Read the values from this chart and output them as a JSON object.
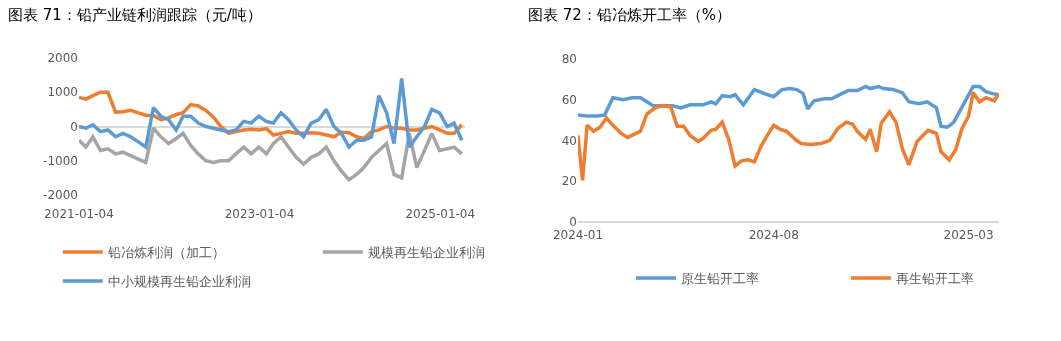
{
  "chart_data": [
    {
      "type": "line",
      "title": "图表 71：铅产业链利润跟踪（元/吨）",
      "legend": "bottom",
      "line_style": "solid",
      "marker": "none",
      "x": [
        "2021-01-04",
        "2021-02",
        "2021-03",
        "2021-04",
        "2021-05",
        "2021-06",
        "2021-07",
        "2021-08",
        "2021-09",
        "2021-10",
        "2021-11",
        "2021-12",
        "2022-01",
        "2022-02",
        "2022-03",
        "2022-04",
        "2022-05",
        "2022-06",
        "2022-07",
        "2022-08",
        "2022-09",
        "2022-10",
        "2022-11",
        "2022-12",
        "2023-01",
        "2023-02",
        "2023-03",
        "2023-04",
        "2023-05",
        "2023-06",
        "2023-07",
        "2023-08",
        "2023-09",
        "2023-10",
        "2023-11",
        "2023-12",
        "2024-01",
        "2024-02",
        "2024-03",
        "2024-04",
        "2024-05",
        "2024-06",
        "2024-07",
        "2024-08",
        "2024-09",
        "2024-10",
        "2024-11",
        "2024-12",
        "2025-01",
        "2025-02",
        "2025-03",
        "2025-04"
      ],
      "xlim": [
        "2021-01-04",
        "2025-04-15"
      ],
      "xticks": [
        {
          "value": "2021-01-04",
          "label": "2021-01-04"
        },
        {
          "value": "2023-01-04",
          "label": "2023-01-04"
        },
        {
          "value": "2025-01-04",
          "label": "2025-01-04"
        }
      ],
      "ylim": [
        -2000,
        2000
      ],
      "yticks": [
        -2000,
        -1000,
        0,
        1000,
        2000
      ],
      "series": [
        {
          "name": "铅冶炼利润（加工）",
          "color": "#ed7d31",
          "values": [
            850,
            800,
            900,
            1000,
            1000,
            420,
            430,
            470,
            400,
            330,
            320,
            200,
            250,
            350,
            400,
            640,
            600,
            470,
            280,
            0,
            -200,
            -150,
            -100,
            -80,
            -100,
            -60,
            -250,
            -200,
            -150,
            -200,
            -200,
            -180,
            -200,
            -250,
            -300,
            -170,
            -180,
            -300,
            -350,
            -150,
            -100,
            0,
            -50,
            -50,
            -100,
            -100,
            -50,
            0,
            -100,
            -200,
            -200,
            50
          ]
        },
        {
          "name": "规模再生铅企业利润",
          "color": "#a5a5a5",
          "values": [
            -400,
            -600,
            -300,
            -700,
            -650,
            -800,
            -750,
            -850,
            -950,
            -1050,
            -50,
            -300,
            -500,
            -350,
            -200,
            -550,
            -800,
            -1000,
            -1050,
            -1000,
            -1000,
            -800,
            -600,
            -800,
            -600,
            -800,
            -500,
            -300,
            -600,
            -900,
            -1100,
            -900,
            -800,
            -600,
            -1000,
            -1300,
            -1550,
            -1400,
            -1200,
            -900,
            -700,
            -500,
            -1400,
            -1500,
            -200,
            -1200,
            -700,
            -200,
            -700,
            -650,
            -600,
            -800
          ]
        },
        {
          "name": "中小规模再生铅企业利润",
          "color": "#5b9bd5",
          "values": [
            0,
            -50,
            50,
            -150,
            -100,
            -300,
            -200,
            -300,
            -450,
            -600,
            550,
            300,
            200,
            -100,
            300,
            300,
            100,
            0,
            -50,
            -100,
            -150,
            -100,
            150,
            100,
            300,
            150,
            100,
            400,
            200,
            -100,
            -300,
            100,
            200,
            500,
            0,
            -200,
            -600,
            -400,
            -400,
            -300,
            900,
            400,
            -500,
            1400,
            -600,
            -300,
            0,
            500,
            400,
            0,
            100,
            -400
          ]
        }
      ]
    },
    {
      "type": "line",
      "title": "图表 72：铅冶炼开工率（%）",
      "legend": "bottom",
      "line_style": "solid",
      "marker": "none",
      "xlim": [
        "2024-01-01",
        "2025-04-03"
      ],
      "xticks": [
        {
          "value": "2024-01-01",
          "label": "2024-01"
        },
        {
          "value": "2024-08-01",
          "label": "2024-08"
        },
        {
          "value": "2025-03-01",
          "label": "2025-03"
        }
      ],
      "ylim": [
        0,
        80
      ],
      "yticks": [
        0,
        20,
        40,
        60,
        80
      ],
      "series": [
        {
          "name": "原生铅开工率",
          "color": "#5b9bd5",
          "x": [
            "2024-01-01",
            "2024-01-11",
            "2024-01-22",
            "2024-01-30",
            "2024-02-08",
            "2024-02-19",
            "2024-02-29",
            "2024-03-09",
            "2024-03-16",
            "2024-03-23",
            "2024-04-03",
            "2024-04-13",
            "2024-04-22",
            "2024-05-02",
            "2024-05-16",
            "2024-05-25",
            "2024-05-30",
            "2024-06-06",
            "2024-06-15",
            "2024-06-20",
            "2024-06-29",
            "2024-07-11",
            "2024-07-22",
            "2024-08-01",
            "2024-08-10",
            "2024-08-19",
            "2024-08-26",
            "2024-09-02",
            "2024-09-07",
            "2024-09-14",
            "2024-09-25",
            "2024-10-03",
            "2024-10-14",
            "2024-10-21",
            "2024-10-31",
            "2024-11-09",
            "2024-11-14",
            "2024-11-23",
            "2024-11-28",
            "2024-12-09",
            "2024-12-19",
            "2024-12-26",
            "2025-01-06",
            "2025-01-15",
            "2025-01-25",
            "2025-01-30",
            "2025-02-06",
            "2025-02-13",
            "2025-02-22",
            "2025-03-06",
            "2025-03-13",
            "2025-03-20",
            "2025-03-27",
            "2025-04-03"
          ],
          "values": [
            52.5,
            52,
            52,
            52.5,
            61,
            60,
            61,
            61,
            59,
            57,
            57,
            57,
            56,
            57.5,
            57.5,
            59,
            58,
            62,
            61.5,
            62.5,
            57.5,
            65,
            63,
            61.5,
            65,
            65.5,
            65,
            63,
            55.5,
            59.5,
            60.5,
            60.5,
            63,
            64.5,
            64.5,
            66.5,
            65.5,
            66.5,
            65.5,
            65,
            63.5,
            59,
            58,
            59,
            56,
            47,
            46.5,
            49,
            56.5,
            66.5,
            66.5,
            64,
            63,
            62.5
          ]
        },
        {
          "name": "再生铅开工率",
          "color": "#ed7d31",
          "x": [
            "2024-01-01",
            "2024-01-06",
            "2024-01-11",
            "2024-01-18",
            "2024-01-25",
            "2024-02-01",
            "2024-02-08",
            "2024-02-17",
            "2024-02-24",
            "2024-03-02",
            "2024-03-09",
            "2024-03-16",
            "2024-03-25",
            "2024-04-01",
            "2024-04-11",
            "2024-04-18",
            "2024-04-25",
            "2024-05-02",
            "2024-05-11",
            "2024-05-16",
            "2024-05-25",
            "2024-05-30",
            "2024-06-06",
            "2024-06-13",
            "2024-06-20",
            "2024-06-27",
            "2024-07-04",
            "2024-07-11",
            "2024-07-18",
            "2024-07-25",
            "2024-08-01",
            "2024-08-08",
            "2024-08-15",
            "2024-08-26",
            "2024-08-31",
            "2024-09-10",
            "2024-09-21",
            "2024-10-01",
            "2024-10-10",
            "2024-10-19",
            "2024-10-26",
            "2024-10-31",
            "2024-11-09",
            "2024-11-14",
            "2024-11-21",
            "2024-11-26",
            "2024-12-05",
            "2024-12-12",
            "2024-12-19",
            "2024-12-26",
            "2025-01-04",
            "2025-01-16",
            "2025-01-25",
            "2025-01-30",
            "2025-02-08",
            "2025-02-15",
            "2025-02-22",
            "2025-03-01",
            "2025-03-06",
            "2025-03-13",
            "2025-03-20",
            "2025-03-29",
            "2025-04-03"
          ],
          "values": [
            42.5,
            20.5,
            47.5,
            44.5,
            46.5,
            51,
            47.5,
            43.5,
            41.5,
            43,
            44.5,
            53,
            56,
            57,
            56.5,
            47,
            47,
            42.5,
            39.5,
            41,
            45,
            45.5,
            49,
            40.5,
            27.5,
            30,
            30.5,
            29.5,
            37,
            42.5,
            47.5,
            45.5,
            44.5,
            40,
            38.5,
            38,
            38.5,
            40,
            46,
            49,
            48,
            44.5,
            40.5,
            45.5,
            34.5,
            48.5,
            54,
            49,
            36,
            28,
            39.5,
            45,
            43.5,
            34.5,
            30.5,
            35.5,
            46,
            52,
            63.5,
            59,
            61,
            59.5,
            63
          ]
        }
      ]
    }
  ]
}
